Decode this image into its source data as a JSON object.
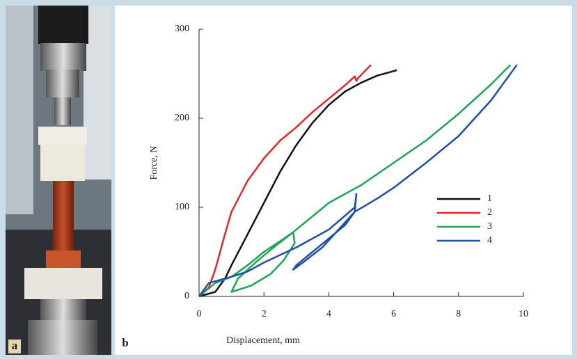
{
  "panel_labels": [
    "a",
    "b"
  ],
  "chart_data": {
    "type": "line",
    "xlabel": "Displacement, mm",
    "ylabel": "Force, N",
    "xlim": [
      0,
      10
    ],
    "ylim": [
      0,
      300
    ],
    "xticks": [
      0,
      2,
      4,
      6,
      8,
      10
    ],
    "yticks": [
      0,
      100,
      200,
      300
    ],
    "grid": false,
    "legend": "right",
    "series": [
      {
        "name": "1",
        "color": "#111111",
        "x": [
          0,
          0.5,
          0.8,
          1,
          1.5,
          2,
          2.5,
          3,
          3.5,
          4,
          4.5,
          5,
          5.5,
          6,
          6.1
        ],
        "values": [
          0,
          5,
          20,
          35,
          70,
          105,
          140,
          170,
          195,
          215,
          230,
          240,
          248,
          253,
          254
        ]
      },
      {
        "name": "2",
        "color": "#e8262a",
        "x": [
          0,
          0.3,
          0.5,
          0.8,
          1,
          1.5,
          2,
          2.5,
          3,
          3.5,
          4,
          4.5,
          4.8,
          4.85,
          4.9,
          5.3
        ],
        "values": [
          0,
          10,
          30,
          70,
          95,
          130,
          155,
          175,
          190,
          207,
          222,
          237,
          247,
          242,
          245,
          260
        ]
      },
      {
        "name": "3",
        "color": "#1aa654",
        "x": [
          0,
          0.5,
          1,
          1.5,
          2,
          2.5,
          2.9,
          2.95,
          2.6,
          2.2,
          1.6,
          1,
          1.2,
          1.8,
          2.4,
          2.9,
          3.5,
          4,
          5,
          6,
          7,
          8,
          9,
          9.6
        ],
        "values": [
          0,
          15,
          22,
          35,
          50,
          62,
          72,
          60,
          40,
          25,
          12,
          5,
          20,
          40,
          58,
          72,
          90,
          105,
          125,
          150,
          175,
          205,
          238,
          260
        ]
      },
      {
        "name": "4",
        "color": "#1f4fa8",
        "x": [
          0,
          0.3,
          1,
          1.5,
          2,
          3,
          4,
          4.8,
          4.85,
          4.8,
          4.5,
          4,
          3.5,
          3,
          2.9,
          3.2,
          3.8,
          4.3,
          4.8,
          5.5,
          6,
          7,
          8,
          9,
          9.8
        ],
        "values": [
          0,
          15,
          22,
          28,
          38,
          55,
          75,
          100,
          115,
          95,
          80,
          65,
          50,
          35,
          30,
          38,
          55,
          75,
          95,
          110,
          122,
          150,
          180,
          220,
          260
        ]
      }
    ]
  }
}
